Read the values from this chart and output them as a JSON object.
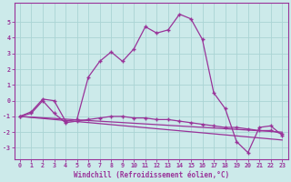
{
  "xlabel": "Windchill (Refroidissement éolien,°C)",
  "xlim": [
    -0.5,
    23.5
  ],
  "ylim": [
    -3.7,
    6.2
  ],
  "yticks": [
    -3,
    -2,
    -1,
    0,
    1,
    2,
    3,
    4,
    5
  ],
  "xticks": [
    0,
    1,
    2,
    3,
    4,
    5,
    6,
    7,
    8,
    9,
    10,
    11,
    12,
    13,
    14,
    15,
    16,
    17,
    18,
    19,
    20,
    21,
    22,
    23
  ],
  "bg_color": "#cceaea",
  "line_color": "#993399",
  "grid_color": "#aad4d4",
  "line1_x": [
    0,
    1,
    2,
    3,
    4,
    5,
    6,
    7,
    8,
    9,
    10,
    11,
    12,
    13,
    14,
    15,
    16,
    17,
    18,
    19,
    20,
    21,
    22,
    23
  ],
  "line1_y": [
    -1.0,
    -0.7,
    0.1,
    0.0,
    -1.3,
    -1.2,
    1.5,
    2.5,
    3.1,
    2.5,
    3.3,
    4.7,
    4.3,
    4.5,
    5.5,
    5.2,
    3.9,
    0.5,
    -0.5,
    -2.6,
    -3.3,
    -1.7,
    -1.6,
    -2.2
  ],
  "line2_x": [
    0,
    1,
    2,
    3,
    4,
    5,
    6,
    7,
    8,
    9,
    10,
    11,
    12,
    13,
    14,
    15,
    16,
    17,
    18,
    19,
    20,
    21,
    22,
    23
  ],
  "line2_y": [
    -1.0,
    -0.8,
    0.0,
    -0.8,
    -1.4,
    -1.3,
    -1.2,
    -1.1,
    -1.0,
    -1.0,
    -1.1,
    -1.1,
    -1.2,
    -1.2,
    -1.3,
    -1.4,
    -1.5,
    -1.6,
    -1.7,
    -1.7,
    -1.8,
    -1.9,
    -1.9,
    -2.1
  ],
  "line3_x": [
    0,
    23
  ],
  "line3_y": [
    -1.0,
    -2.0
  ],
  "line4_x": [
    0,
    23
  ],
  "line4_y": [
    -1.0,
    -2.5
  ]
}
